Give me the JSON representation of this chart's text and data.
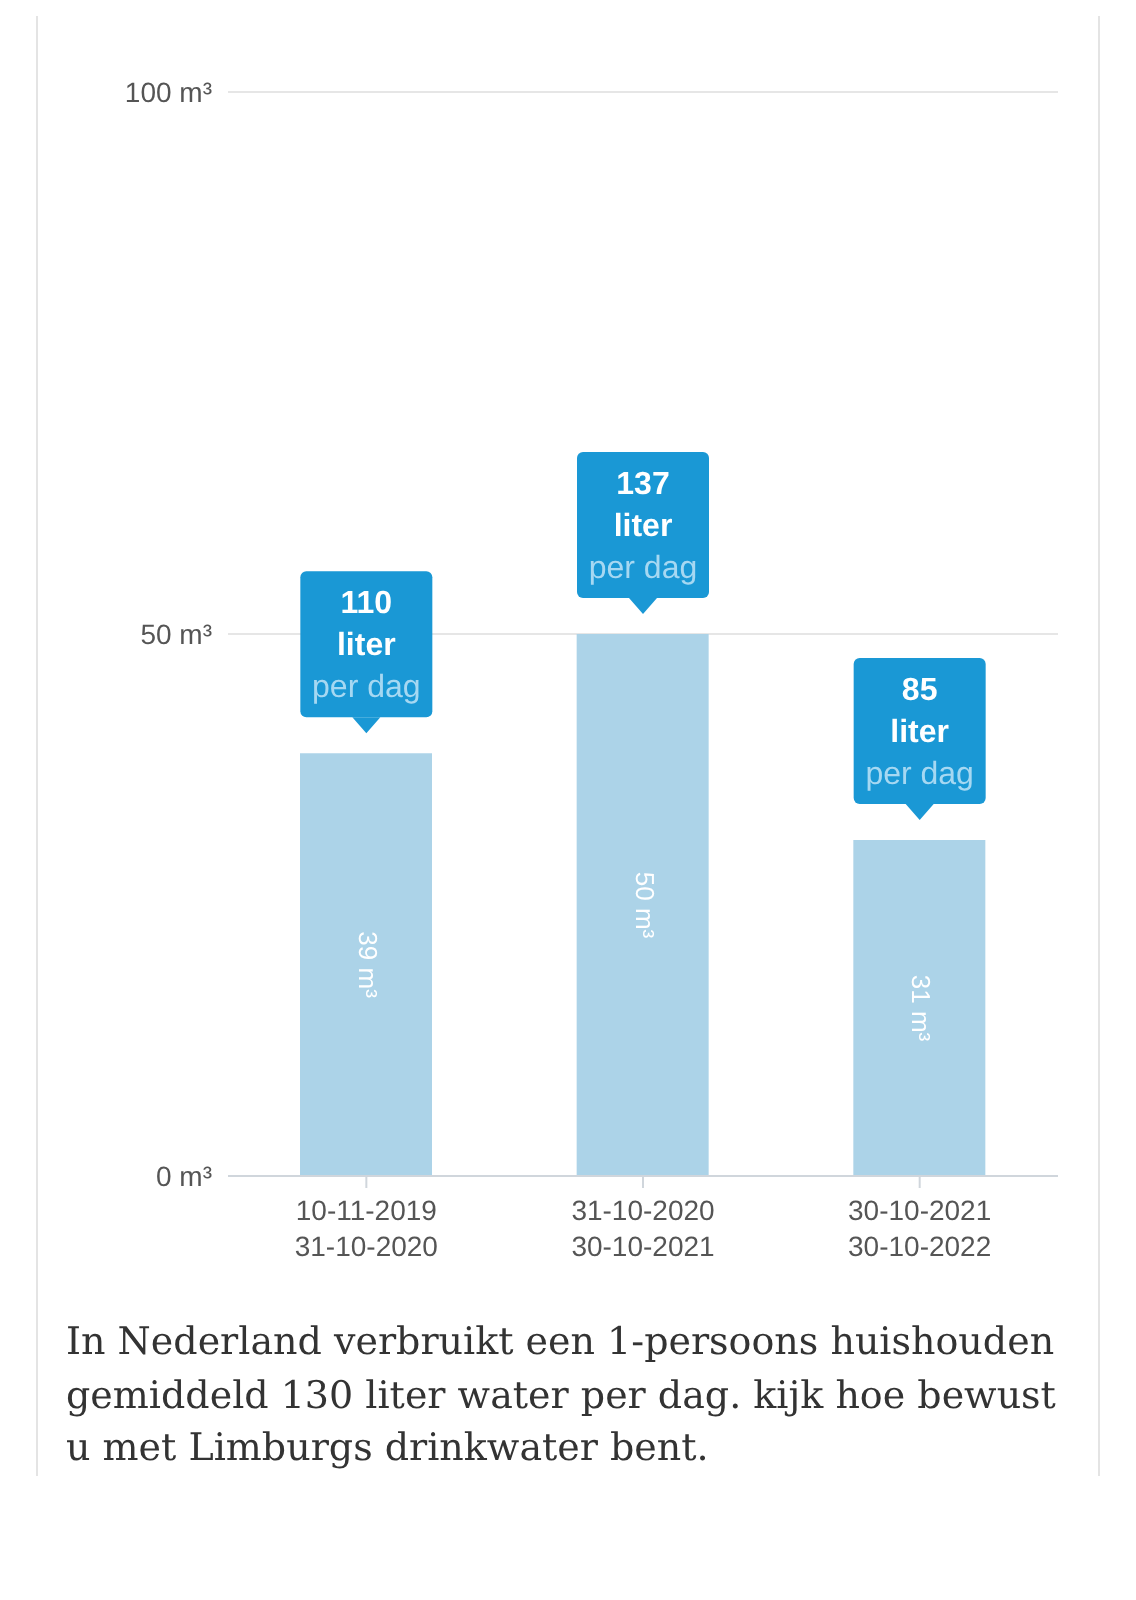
{
  "chart_data": {
    "type": "bar",
    "categories": [
      "10-11-2019\n31-10-2020",
      "31-10-2020\n30-10-2021",
      "30-10-2021\n30-10-2022"
    ],
    "values": [
      39,
      50,
      31
    ],
    "value_labels": [
      "39 m³",
      "50 m³",
      "31 m³"
    ],
    "color": "#acd3e8",
    "ylim": [
      0,
      100
    ],
    "yticks": [
      {
        "value": 0,
        "label": "0 m³"
      },
      {
        "value": 50,
        "label": "50 m³"
      },
      {
        "value": 100,
        "label": "100 m³"
      }
    ],
    "grid": "y",
    "annotations": [
      {
        "text": "110\nliter\nper dag",
        "x": "10-11-2019\n31-10-2020",
        "y": 39
      },
      {
        "text": "137\nliter\nper dag",
        "x": "31-10-2020\n30-10-2021",
        "y": 50
      },
      {
        "text": "85\nliter\nper dag",
        "x": "30-10-2021\n30-10-2022",
        "y": 31
      },
      "In Nederland verbruikt een 1-persoons huishouden gemiddeld 130 liter water per dag. kijk hoe bewust u met Limburgs drinkwater bent."
    ]
  }
}
